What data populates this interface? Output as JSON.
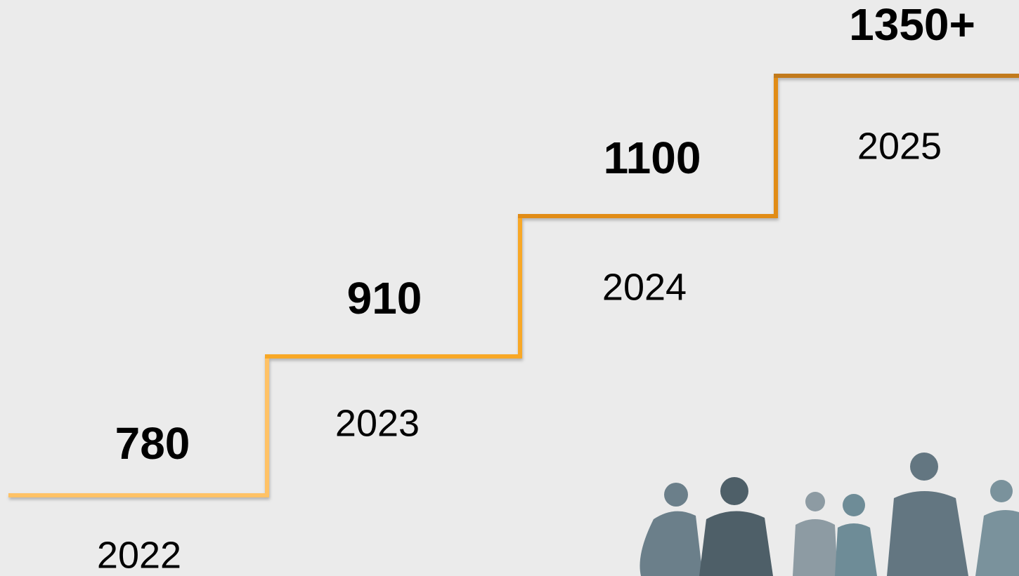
{
  "steps": [
    {
      "number": "780",
      "year": "2022"
    },
    {
      "number": "910",
      "year": "2023"
    },
    {
      "number": "1100",
      "year": "2024"
    },
    {
      "number": "1350+",
      "year": "2025"
    }
  ]
}
